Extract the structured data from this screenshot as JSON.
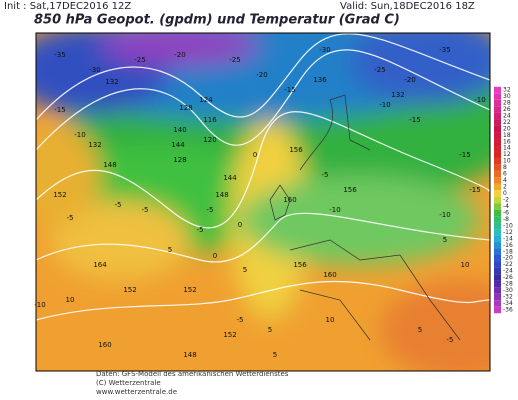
{
  "header": {
    "init": "Init : Sat,17DEC2016 12Z",
    "title": "850 hPa Geopot. (gpdm) und Temperatur (Grad C)",
    "valid": "Valid: Sun,18DEC2016 18Z"
  },
  "colorbar": {
    "ticks": [
      32,
      30,
      28,
      26,
      24,
      22,
      20,
      18,
      16,
      14,
      12,
      10,
      8,
      6,
      4,
      2,
      0,
      -2,
      -4,
      -6,
      -8,
      -10,
      -12,
      -14,
      -16,
      -18,
      -20,
      -22,
      -24,
      -26,
      -28,
      -30,
      -32,
      -34,
      -36
    ]
  },
  "map": {
    "labels": [
      "-35",
      "-30",
      "-25",
      "-20",
      "132",
      "-15",
      "-10",
      "-25",
      "-20",
      "-15",
      "136",
      "-30",
      "-25",
      "-35",
      "-20",
      "-10",
      "-15",
      "132",
      "140",
      "144",
      "128",
      "124",
      "116",
      "120",
      "128",
      "132",
      "148",
      "152",
      "-5",
      "-5",
      "144",
      "148",
      "156",
      "0",
      "-5",
      "-10",
      "156",
      "160",
      "164",
      "152",
      "-5",
      "0",
      "5",
      "156",
      "160",
      "10",
      "5",
      "-5",
      "5",
      "-10",
      "-5",
      "0",
      "-5",
      "152",
      "-10",
      "-15",
      "5",
      "10",
      "160",
      "152",
      "148",
      "5",
      "10",
      "5",
      "-5",
      "-15",
      "-10"
    ]
  },
  "footer": {
    "line1": "Daten: GFS-Modell des amerikanischen Wetterdienstes",
    "line2": "(C) Wetterzentrale",
    "line3": "www.wetterzentrale.de"
  }
}
